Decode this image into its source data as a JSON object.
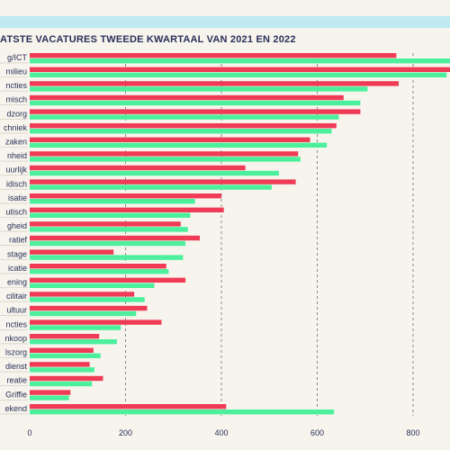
{
  "colors": {
    "background": "#f6f4ec",
    "band": "#bfeaf0",
    "title": "#2a2f5a",
    "series_2022": "#ef3b55",
    "series_2021": "#4cf09c",
    "grid": "#8a8a8a"
  },
  "chart_data": {
    "type": "bar",
    "orientation": "horizontal",
    "title": "ATSTE VACATURES TWEEDE KWARTAAL VAN 2021 EN 2022",
    "categories": [
      "g/ICT",
      "milieu",
      "ncties",
      "misch",
      "dzorg",
      "chniek",
      "zaken",
      "nheid",
      "uurlijk",
      "idisch",
      "isatie",
      "utisch",
      "gheid",
      "ratief",
      "stage",
      "icatie",
      "ening",
      "cilitair",
      "ultuur",
      "ncties",
      "nkoop",
      "lszorg",
      "dienst",
      "reatie",
      "Griffie",
      "ekend"
    ],
    "series": [
      {
        "name": "",
        "color": "#ef3b55",
        "values": [
          765,
          885,
          770,
          655,
          690,
          640,
          585,
          560,
          450,
          555,
          400,
          405,
          315,
          355,
          175,
          285,
          325,
          218,
          245,
          275,
          145,
          133,
          125,
          153,
          85,
          410
        ]
      },
      {
        "name": "",
        "color": "#4cf09c",
        "values": [
          890,
          870,
          705,
          690,
          645,
          630,
          620,
          565,
          520,
          505,
          345,
          335,
          330,
          325,
          320,
          290,
          260,
          240,
          222,
          190,
          182,
          148,
          135,
          130,
          82,
          635
        ]
      }
    ],
    "x_ticks": [
      0,
      200,
      400,
      600,
      800
    ],
    "xlim": [
      0,
      880
    ],
    "grid": "dashed vertical at 200, 400, 600, 800"
  }
}
